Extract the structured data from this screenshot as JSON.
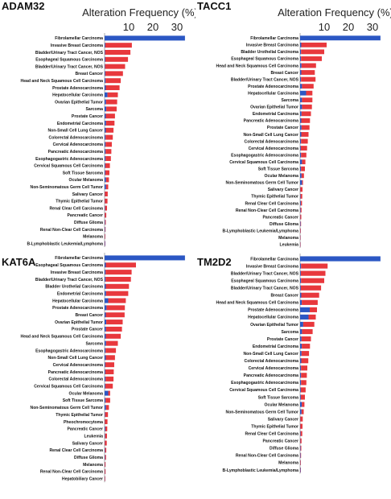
{
  "colors": {
    "red": "#e8383d",
    "blue": "#2b57c4"
  },
  "chart_data": [
    {
      "type": "bar",
      "orientation": "horizontal",
      "title": "ADAM32",
      "xlabel": "Alteration Frequency (%)",
      "xticks": [
        10,
        20,
        30
      ],
      "xlim": [
        0,
        36
      ],
      "stack_order": [
        "blue",
        "red"
      ],
      "categories": [
        "Fibrolamellar Carcinoma",
        "Invasive Breast Carcinoma",
        "Bladder/Urinary Tract Cancer, NOS",
        "Esophageal Squamous Carcinoma",
        "Bladder/Urinary Tract Cancer, NOS",
        "Breast Cancer",
        "Head and Neck Squamous Cell Carcinoma",
        "Prostate Adenocarcinoma",
        "Hepatocellular Carcinoma",
        "Ovarian Epithelial Tumor",
        "Sarcoma",
        "Prostate Cancer",
        "Endometrial Carcinoma",
        "Non-Small Cell Lung Cancer",
        "Colorectal Adenocarcinoma",
        "Cervical Adenocarcinoma",
        "Pancreatic Adenocarcinoma",
        "Esophagogastric Adenocarcinoma",
        "Cervical Squamous Cell Carcinoma",
        "Soft Tissue Sarcoma",
        "Ocular Melanoma",
        "Non-Seminomatous Germ Cell Tumor",
        "Salivary Cancer",
        "Thymic Epithelial Tumor",
        "Renal Clear Cell Carcinoma",
        "Pancreatic Cancer",
        "Diffuse Glioma",
        "Renal Non-Clear Cell Carcinoma",
        "Melanoma",
        "B-Lymphoblastic Leukemia/Lymphoma"
      ],
      "series": [
        {
          "color": "blue",
          "values": [
            33.3,
            0.3,
            0.2,
            0.3,
            0.2,
            0.3,
            0.4,
            0.5,
            1.2,
            0.6,
            0.7,
            0.5,
            0.6,
            0.5,
            0.4,
            0.4,
            0.4,
            0.4,
            0.3,
            0.3,
            0.6,
            0.6,
            0.1,
            0.1,
            0.2,
            0.1,
            0.2,
            0.2,
            0.1,
            0.2
          ]
        },
        {
          "color": "red",
          "values": [
            0,
            11.0,
            10.5,
            9.4,
            8.3,
            7.3,
            6.3,
            5.7,
            4.3,
            4.6,
            4.3,
            3.8,
            3.5,
            3.2,
            3.0,
            2.6,
            2.4,
            2.2,
            1.9,
            1.7,
            1.2,
            0.9,
            1.2,
            1.1,
            0.8,
            0.6,
            0.3,
            0.2,
            0.2,
            0.1
          ]
        }
      ]
    },
    {
      "type": "bar",
      "orientation": "horizontal",
      "title": "TACC1",
      "xlabel": "Alteration Frequency (%)",
      "xticks": [
        10,
        20,
        30
      ],
      "xlim": [
        0,
        36
      ],
      "stack_order": [
        "blue",
        "red"
      ],
      "categories": [
        "Fibrolamellar Carcinoma",
        "Invasive Breast Carcinoma",
        "Bladder Urothelial Carcinoma",
        "Esophageal Squamous Carcinoma",
        "Head and Neck Squamous Cell Carcinoma",
        "Breast Cancer",
        "Bladder/Urinary Tract Cancer, NOS",
        "Prostate Adenocarcinoma",
        "Hepatocellular Carcinoma",
        "Sarcoma",
        "Ovarian Epithelial Tumor",
        "Endometrial Carcinoma",
        "Pancreatic Adenocarcinoma",
        "Prostate Cancer",
        "Non-Small Cell Lung Cancer",
        "Colorectal Adenocarcinoma",
        "Cervical Adenocarcinoma",
        "Esophagogastric Adenocarcinoma",
        "Cervical Squamous Cell Carcinoma",
        "Soft Tissue Sarcoma",
        "Ocular Melanoma",
        "Non-Seminomatous Germ Cell Tumor",
        "Salivary Cancer",
        "Thymic Epithelial Tumor",
        "Renal Clear Cell Carcinoma",
        "Renal Non-Clear Cell Carcinoma",
        "Pancreatic Cancer",
        "Diffuse Glioma",
        "B-Lymphoblastic Leukemia/Lymphoma",
        "Melanoma",
        "Leukemia"
      ],
      "series": [
        {
          "color": "blue",
          "values": [
            33.3,
            0.5,
            0.4,
            0.4,
            0.6,
            0.5,
            0.4,
            0.8,
            2.5,
            0.8,
            0.8,
            0.6,
            0.5,
            0.6,
            0.5,
            0.4,
            0.3,
            0.4,
            0.8,
            0.4,
            0.6,
            0.8,
            0.1,
            0.2,
            0.3,
            0.2,
            0.1,
            0.2,
            0.1,
            0.1,
            0.1
          ]
        },
        {
          "color": "red",
          "values": [
            0,
            10.5,
            9.6,
            8.6,
            6.0,
            5.6,
            6.0,
            4.8,
            2.6,
            4.3,
            4.1,
            3.9,
            3.6,
            3.3,
            3.0,
            2.8,
            2.6,
            2.2,
            1.4,
            1.6,
            1.0,
            0.4,
            0.9,
            0.7,
            0.5,
            0.4,
            0.4,
            0.2,
            0.2,
            0.1,
            0.1
          ]
        }
      ]
    },
    {
      "type": "bar",
      "orientation": "horizontal",
      "title": "KAT6A",
      "xlabel": "",
      "xlim": [
        0,
        36
      ],
      "stack_order": [
        "blue",
        "red"
      ],
      "categories": [
        "Fibrolamellar Carcinoma",
        "Esophageal Squamous Carcinoma",
        "Invasive Breast Carcinoma",
        "Bladder/Urinary Tract Cancer, NOS",
        "Bladder Urothelial Carcinoma",
        "Endometrial Carcinoma",
        "Hepatocellular Carcinoma",
        "Prostate Adenocarcinoma",
        "Breast Cancer",
        "Ovarian Epithelial Tumor",
        "Prostate Cancer",
        "Head and Neck Squamous Cell Carcinoma",
        "Sarcoma",
        "Esophagogastric Adenocarcinoma",
        "Non-Small Cell Lung Cancer",
        "Cervical Adenocarcinoma",
        "Pancreatic Adenocarcinoma",
        "Colorectal Adenocarcinoma",
        "Cervical Squamous Cell Carcinoma",
        "Ocular Melanoma",
        "Soft Tissue Sarcoma",
        "Non-Seminomatous Germ Cell Tumor",
        "Thymic Epithelial Tumor",
        "Pheochromocytoma",
        "Pancreatic Cancer",
        "Leukemia",
        "Salivary Cancer",
        "Renal Clear Cell Carcinoma",
        "Diffuse Glioma",
        "Melanoma",
        "Renal Non-Clear Cell Carcinoma",
        "Hepatobiliary Cancer"
      ],
      "series": [
        {
          "color": "blue",
          "values": [
            33.3,
            0.5,
            0.4,
            0.4,
            0.5,
            0.6,
            1.5,
            0.8,
            0.5,
            0.7,
            0.6,
            0.5,
            0.6,
            0.4,
            0.5,
            0.3,
            0.3,
            0.4,
            0.3,
            1.5,
            0.4,
            0.6,
            0.2,
            0.1,
            0.3,
            0.2,
            0.1,
            0.2,
            0.2,
            0.1,
            0.1,
            0.1
          ]
        },
        {
          "color": "red",
          "values": [
            0,
            12.5,
            10.8,
            10.5,
            9.6,
            9.2,
            7.3,
            7.6,
            7.8,
            6.8,
            6.6,
            6.2,
            4.9,
            4.3,
            3.8,
            3.7,
            3.5,
            3.3,
            3.1,
            0.8,
            1.9,
            1.2,
            1.2,
            1.1,
            0.8,
            0.8,
            0.8,
            0.5,
            0.4,
            0.3,
            0.3,
            0.2
          ]
        }
      ]
    },
    {
      "type": "bar",
      "orientation": "horizontal",
      "title": "TM2D2",
      "xlabel": "",
      "xlim": [
        0,
        36
      ],
      "stack_order": [
        "blue",
        "red"
      ],
      "categories": [
        "Fibrolamellar Carcinoma",
        "Invasive Breast Carcinoma",
        "Bladder/Urinary Tract Cancer, NOS",
        "Esophageal Squamous Carcinoma",
        "Bladder/Urinary Tract Cancer, NOS",
        "Breast Cancer",
        "Head and Neck Squamous Cell Carcinoma",
        "Prostate Adenocarcinoma",
        "Hepatocellular Carcinoma",
        "Ovarian Epithelial Tumor",
        "Sarcoma",
        "Prostate Cancer",
        "Endometrial Carcinoma",
        "Non-Small Cell Lung Cancer",
        "Colorectal Adenocarcinoma",
        "Cervical Adenocarcinoma",
        "Pancreatic Adenocarcinoma",
        "Esophagogastric Adenocarcinoma",
        "Cervical Squamous Cell Carcinoma",
        "Soft Tissue Sarcoma",
        "Ocular Melanoma",
        "Non-Seminomatous Germ Cell Tumor",
        "Salivary Cancer",
        "Thymic Epithelial Tumor",
        "Renal Clear Cell Carcinoma",
        "Pancreatic Cancer",
        "Diffuse Glioma",
        "Renal Non-Clear Cell Carcinoma",
        "Melanoma",
        "B-Lymphoblastic Leukemia/Lymphoma"
      ],
      "series": [
        {
          "color": "blue",
          "values": [
            33.3,
            0.4,
            0.3,
            0.4,
            0.3,
            0.5,
            0.7,
            4.0,
            3.5,
            1.3,
            0.8,
            0.6,
            0.7,
            0.6,
            0.5,
            0.4,
            0.4,
            0.4,
            0.3,
            0.3,
            0.7,
            0.6,
            0.1,
            0.1,
            0.2,
            0.1,
            0.2,
            0.2,
            0.1,
            0.2
          ]
        },
        {
          "color": "red",
          "values": [
            0,
            11.0,
            10.2,
            9.6,
            8.4,
            7.4,
            6.6,
            3.0,
            3.0,
            4.6,
            4.4,
            3.9,
            3.4,
            3.1,
            2.9,
            2.6,
            2.4,
            2.2,
            2.0,
            1.7,
            1.1,
            0.9,
            1.0,
            0.9,
            0.7,
            0.5,
            0.3,
            0.2,
            0.2,
            0.1
          ]
        }
      ]
    }
  ]
}
